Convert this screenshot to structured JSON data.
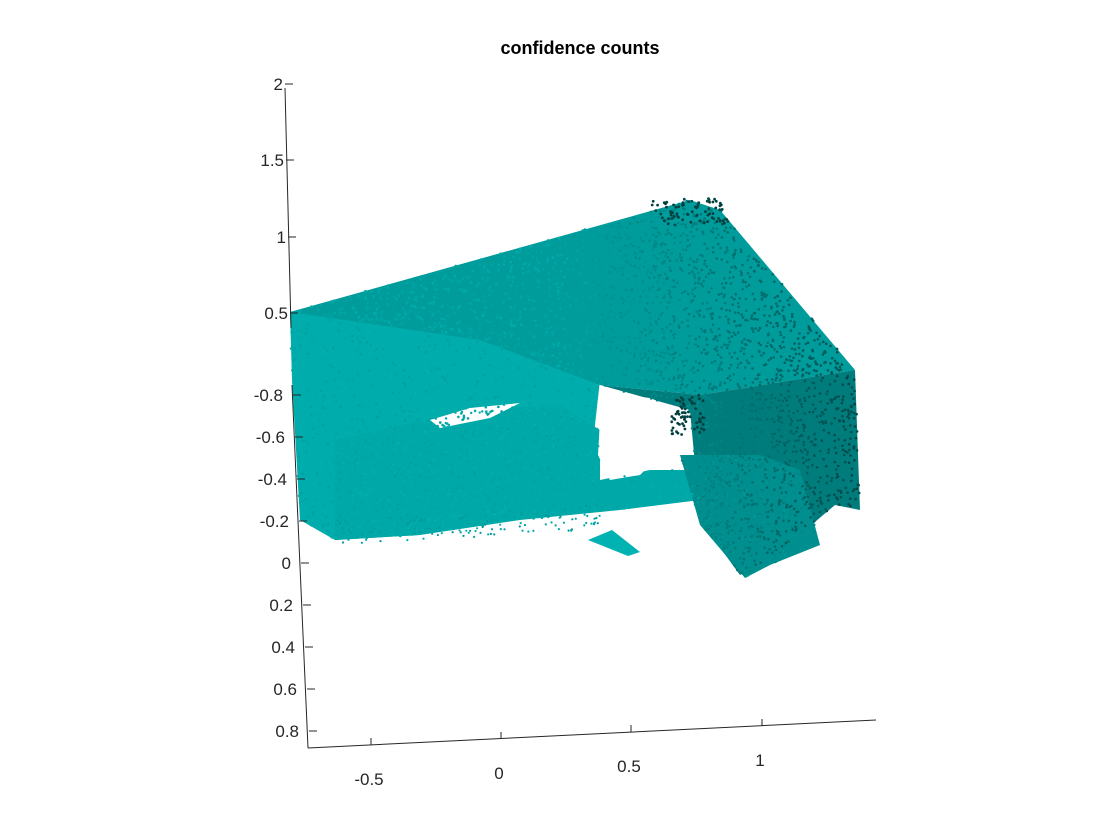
{
  "chart_data": {
    "type": "scatter",
    "title": "confidence counts",
    "xlabel": "",
    "ylabel": "",
    "zlabel": "",
    "grid": false,
    "legend": "none",
    "point_color_low": "#00b2b2",
    "point_color_high": "#003a3a",
    "x_ticks": [
      "-0.5",
      "0",
      "0.5",
      "1"
    ],
    "y_ticks": [
      "-0.8",
      "-0.6",
      "-0.4",
      "-0.2",
      "0",
      "0.2",
      "0.4",
      "0.6",
      "0.8"
    ],
    "z_ticks": [
      "2",
      "1.5",
      "1",
      "0.5"
    ],
    "xlim": [
      -0.75,
      1.45
    ],
    "ylim": [
      -0.9,
      0.9
    ],
    "zlim": [
      0.5,
      2
    ]
  }
}
